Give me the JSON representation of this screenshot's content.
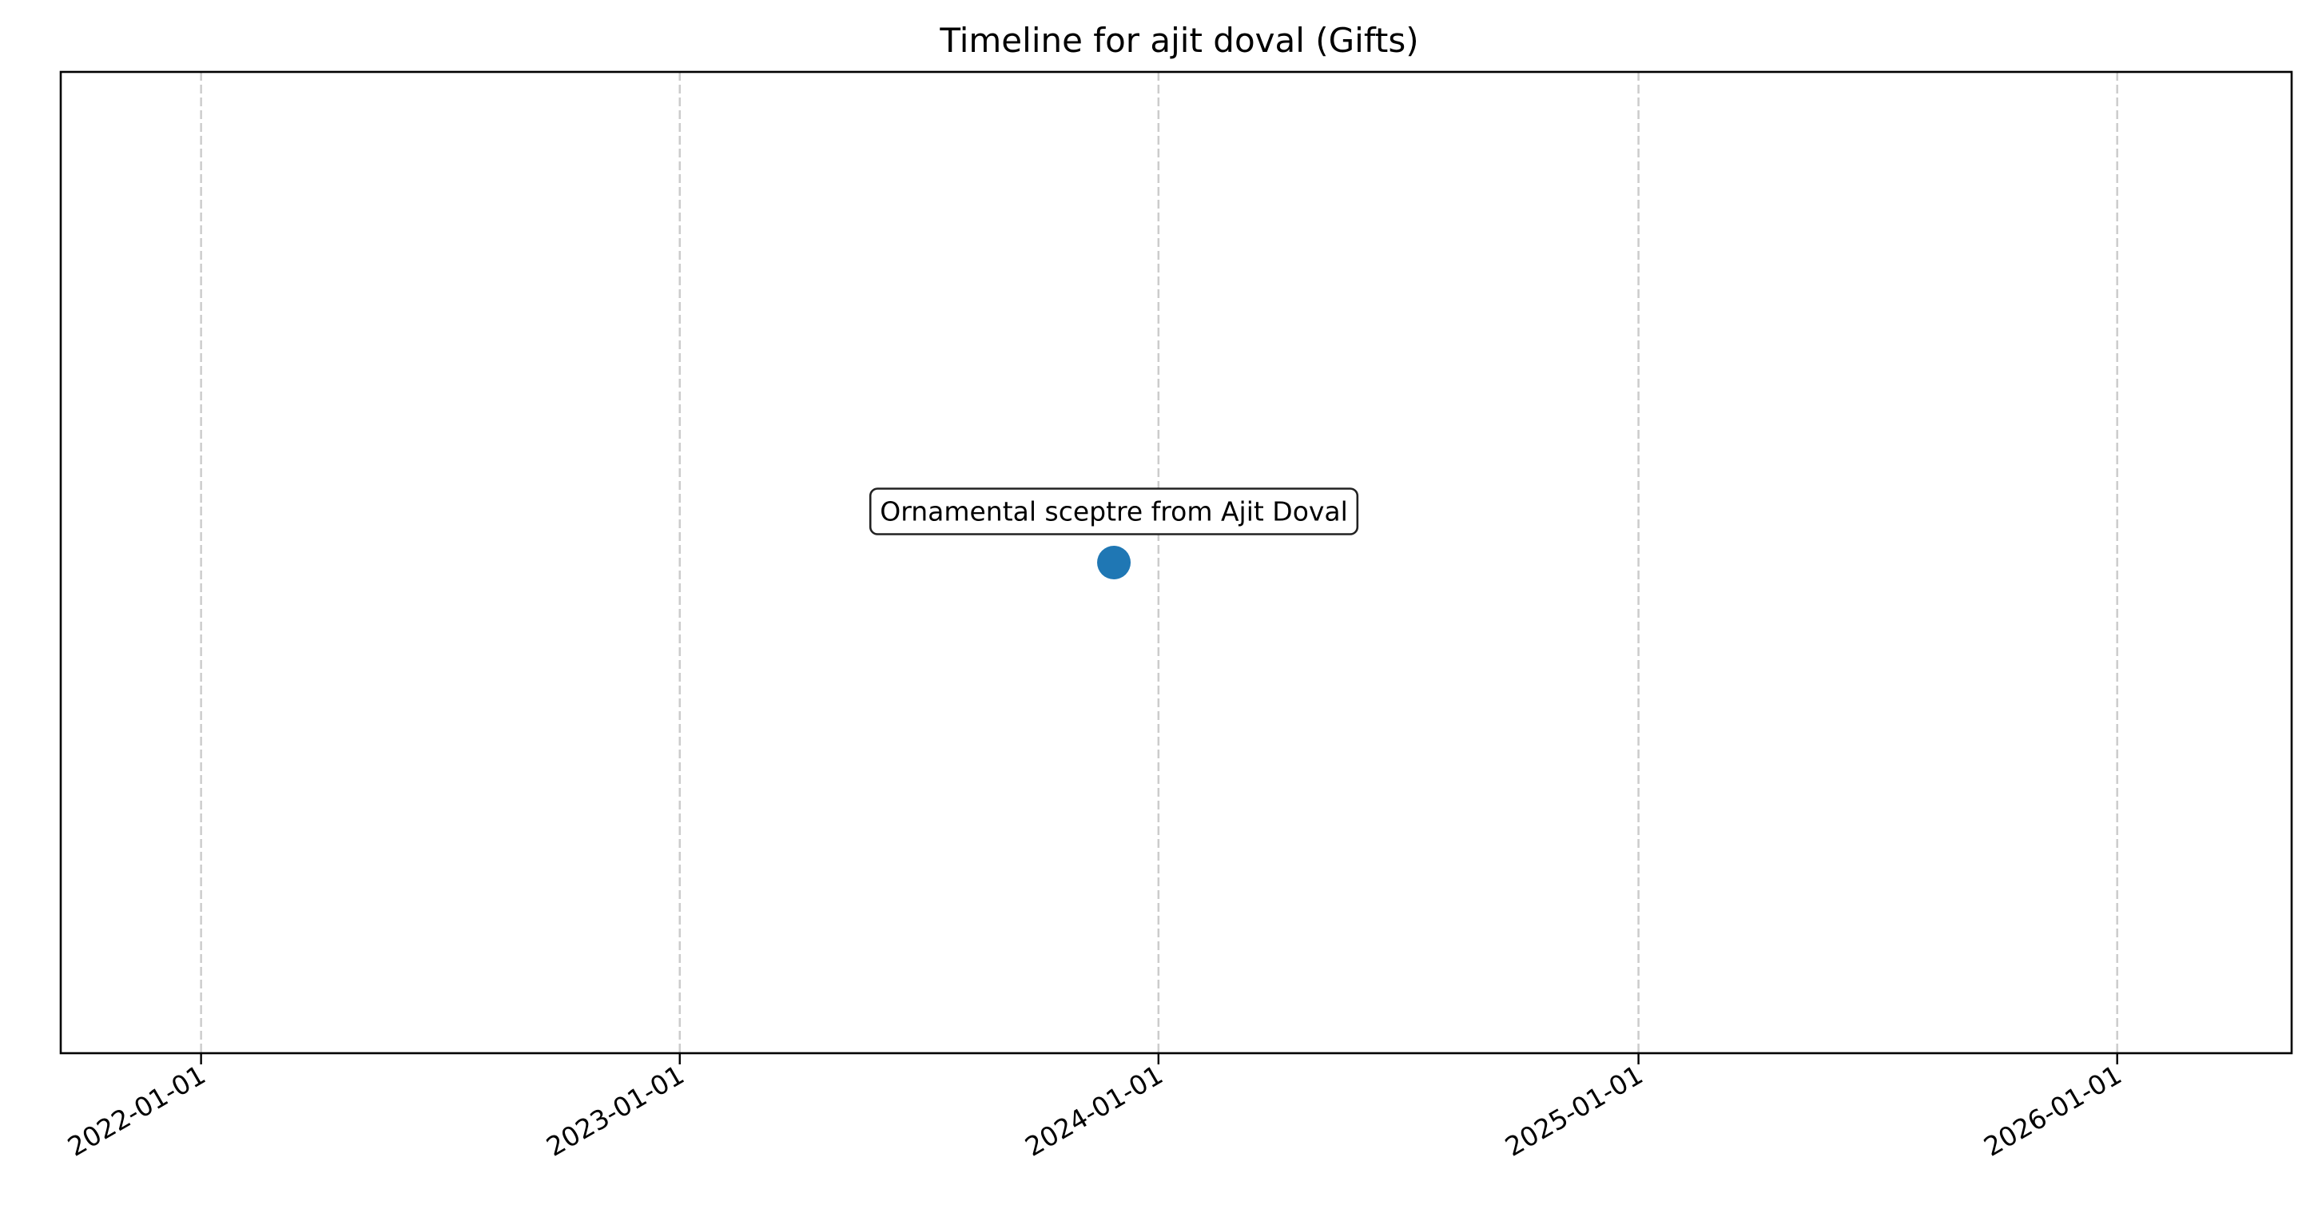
{
  "chart_data": {
    "type": "scatter",
    "title": "Timeline for ajit doval (Gifts)",
    "xlabel": "",
    "ylabel": "",
    "x_axis_type": "date",
    "xlim": [
      "2021-09-16",
      "2026-05-14"
    ],
    "ylim": [
      -1,
      1
    ],
    "x_ticks": [
      "2022-01-01",
      "2023-01-01",
      "2024-01-01",
      "2025-01-01",
      "2026-01-01"
    ],
    "grid": "x-dashed",
    "y_axis_ticks": "hidden",
    "points": [
      {
        "x": "2023-11-28",
        "y": 0,
        "label": "Ornamental sceptre from Ajit Doval"
      }
    ],
    "colors": {
      "marker": "#1f77b4",
      "grid": "#cccccc",
      "axes": "#000000",
      "annotation_border": "#222222"
    }
  }
}
